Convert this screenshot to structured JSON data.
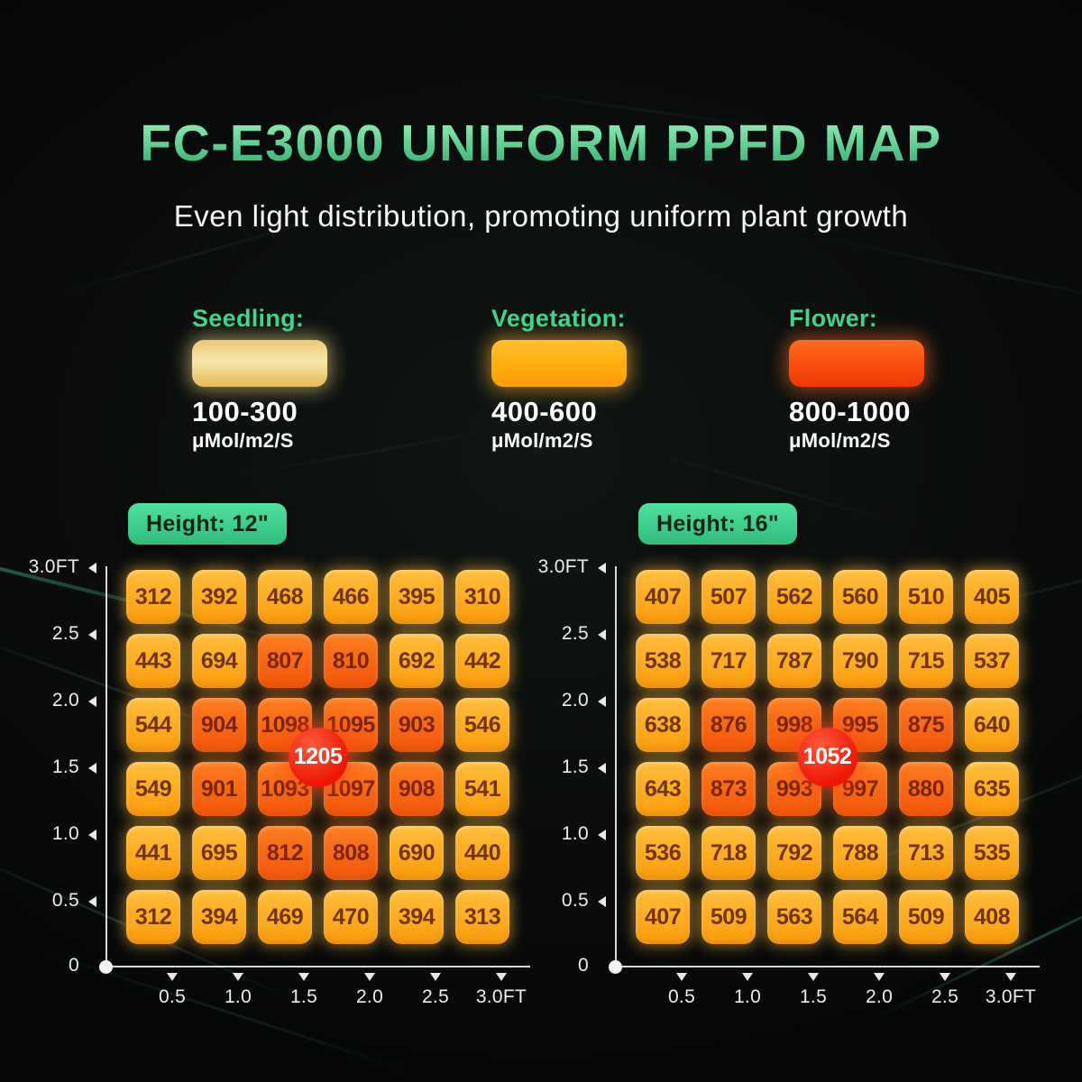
{
  "header": {
    "title": "FC-E3000 UNIFORM PPFD MAP",
    "subtitle": "Even light distribution, promoting uniform plant growth"
  },
  "colors": {
    "title_top": "#8ceab1",
    "title_bottom": "#35b273",
    "accent_green": "#3bd68c",
    "badge_top": "#52e09e",
    "badge_bottom": "#2fbd7c",
    "badge_text": "#0b2519",
    "cell_low_top": "#ffbe3d",
    "cell_low_bottom": "#f99c0c",
    "cell_high_top": "#fb7d20",
    "cell_high_bottom": "#f3550b",
    "cell_text": "#73350d",
    "cell_text_high": "#7c2406",
    "peak_red": "#ed1605"
  },
  "legend": {
    "items": [
      {
        "label": "Seedling:",
        "range": "100-300",
        "unit": "μMol/m2/S",
        "swatch_top": "#ecc773",
        "swatch_mid": "#f8e7ad",
        "swatch_bottom": "#e5ba55",
        "glow": "rgba(248,222,140,0.55)"
      },
      {
        "label": "Vegetation:",
        "range": "400-600",
        "unit": "μMol/m2/S",
        "swatch_top": "#ffc22e",
        "swatch_mid": "#ffb013",
        "swatch_bottom": "#ff9d04",
        "glow": "rgba(255,185,50,0.55)"
      },
      {
        "label": "Flower:",
        "range": "800-1000",
        "unit": "μMol/m2/S",
        "swatch_top": "#ff6c24",
        "swatch_mid": "#fa5212",
        "swatch_bottom": "#f03804",
        "glow": "rgba(255,110,45,0.55)"
      }
    ]
  },
  "axes": {
    "y_ticks": [
      "3.0FT",
      "2.5",
      "2.0",
      "1.5",
      "1.0",
      "0.5",
      "0"
    ],
    "x_ticks": [
      "0.5",
      "1.0",
      "1.5",
      "2.0",
      "2.5",
      "3.0FT"
    ]
  },
  "high_threshold": 800,
  "chart_data": [
    {
      "type": "heatmap",
      "height_label": "Height: 12\"",
      "peak_label": "1205",
      "unit": "μMol/m2/S",
      "x_range_ft": [
        0,
        3.0
      ],
      "y_range_ft": [
        0,
        3.0
      ],
      "values": [
        [
          312,
          392,
          468,
          466,
          395,
          310
        ],
        [
          443,
          694,
          807,
          810,
          692,
          442
        ],
        [
          544,
          904,
          1098,
          1095,
          903,
          546
        ],
        [
          549,
          901,
          1093,
          1097,
          908,
          541
        ],
        [
          441,
          695,
          812,
          808,
          690,
          440
        ],
        [
          312,
          394,
          469,
          470,
          394,
          313
        ]
      ]
    },
    {
      "type": "heatmap",
      "height_label": "Height: 16\"",
      "peak_label": "1052",
      "unit": "μMol/m2/S",
      "x_range_ft": [
        0,
        3.0
      ],
      "y_range_ft": [
        0,
        3.0
      ],
      "values": [
        [
          407,
          507,
          562,
          560,
          510,
          405
        ],
        [
          538,
          717,
          787,
          790,
          715,
          537
        ],
        [
          638,
          876,
          998,
          995,
          875,
          640
        ],
        [
          643,
          873,
          993,
          997,
          880,
          635
        ],
        [
          536,
          718,
          792,
          788,
          713,
          535
        ],
        [
          407,
          509,
          563,
          564,
          509,
          408
        ]
      ]
    }
  ]
}
